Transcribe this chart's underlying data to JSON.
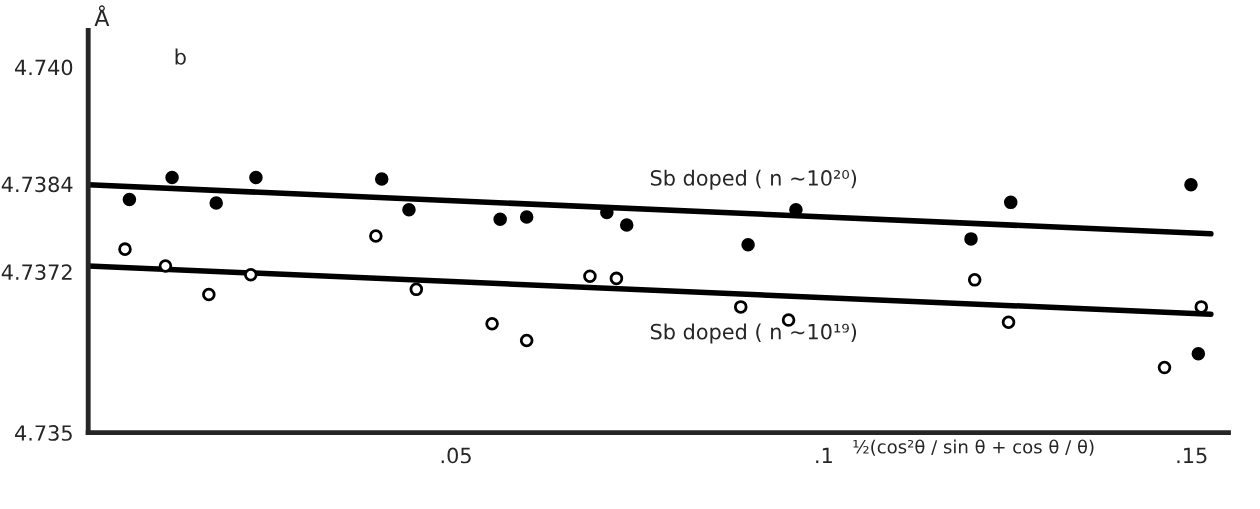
{
  "chart_data": {
    "type": "scatter",
    "ylabel": "Å",
    "xlabel": "½(cos²θ / sin θ + cos θ / θ)",
    "annotations": [
      "b"
    ],
    "xlim": [
      0,
      0.155
    ],
    "ylim": [
      4.735,
      4.7405
    ],
    "xticks": [
      {
        "value": 0.05,
        "label": ".05"
      },
      {
        "value": 0.1,
        "label": ".1"
      },
      {
        "value": 0.15,
        "label": ".15"
      }
    ],
    "yticks": [
      4.735,
      4.7372,
      4.7384,
      {
        "value": 4.74,
        "label": "4.740"
      }
    ],
    "grid": false,
    "legend": false,
    "series": [
      {
        "color": "#000000",
        "marker": "circle",
        "x": [
          0.0056,
          0.0114,
          0.0174,
          0.0228,
          0.0399,
          0.0436,
          0.056,
          0.0596,
          0.0705,
          0.0732,
          0.0897,
          0.0962,
          0.12,
          0.1254,
          0.1499,
          0.1509
        ],
        "values": [
          4.73819,
          4.73849,
          4.73814,
          4.73849,
          4.73847,
          4.73805,
          4.73792,
          4.73795,
          4.73801,
          4.73784,
          4.73757,
          4.73805,
          4.73765,
          4.73815,
          4.73839,
          4.73608
        ]
      },
      {
        "color": "#ffffff",
        "marker": "circle",
        "x": [
          0.005,
          0.0105,
          0.0164,
          0.0221,
          0.0391,
          0.0446,
          0.0549,
          0.0596,
          0.0682,
          0.0718,
          0.0887,
          0.0952,
          0.1205,
          0.1251,
          0.1463,
          0.1513
        ],
        "values": [
          4.73751,
          4.73728,
          4.73689,
          4.73716,
          4.73769,
          4.73696,
          4.73649,
          4.73626,
          4.73714,
          4.73711,
          4.73672,
          4.73654,
          4.73709,
          4.73651,
          4.73589,
          4.73672
        ]
      },
      {
        "type": "line",
        "name": "Sb doped ( n ~10²⁰)",
        "color": "#000000",
        "line_style": "solid",
        "x": [
          0,
          0.1526
        ],
        "values": [
          4.73839,
          4.73772
        ]
      },
      {
        "type": "line",
        "name": "Sb doped ( n ~10¹⁹)",
        "color": "#000000",
        "line_style": "solid",
        "x": [
          0,
          0.1526
        ],
        "values": [
          4.73728,
          4.73662
        ]
      }
    ]
  }
}
